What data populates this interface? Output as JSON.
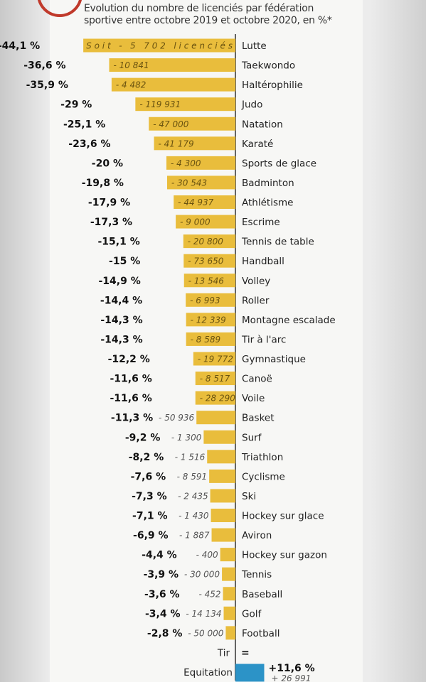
{
  "subtitle": "Evolution du nombre de licenciés par fédération sportive entre octobre 2019 et octobre 2020, en %*",
  "colors": {
    "negative": "#e9bd3c",
    "positive": "#2c93c7",
    "axis": "#333333"
  },
  "chart_data": {
    "type": "bar",
    "orientation": "horizontal",
    "title": "Evolution du nombre de licenciés par fédération sportive entre octobre 2019 et octobre 2020, en %*",
    "xlabel": "",
    "ylabel": "",
    "xlim": [
      -44.1,
      11.6
    ],
    "rows": [
      {
        "category": "Lutte",
        "value": -44.1,
        "pct_label": "-44,1 %",
        "count_label": "Soit - 5 702 licenciés"
      },
      {
        "category": "Taekwondo",
        "value": -36.6,
        "pct_label": "-36,6 %",
        "count_label": "- 10 841"
      },
      {
        "category": "Haltérophilie",
        "value": -35.9,
        "pct_label": "-35,9 %",
        "count_label": "- 4 482"
      },
      {
        "category": "Judo",
        "value": -29,
        "pct_label": "-29 %",
        "count_label": "- 119 931"
      },
      {
        "category": "Natation",
        "value": -25.1,
        "pct_label": "-25,1 %",
        "count_label": "- 47 000"
      },
      {
        "category": "Karaté",
        "value": -23.6,
        "pct_label": "-23,6 %",
        "count_label": "- 41 179"
      },
      {
        "category": "Sports de glace",
        "value": -20,
        "pct_label": "-20 %",
        "count_label": "- 4 300"
      },
      {
        "category": "Badminton",
        "value": -19.8,
        "pct_label": "-19,8 %",
        "count_label": "- 30 543"
      },
      {
        "category": "Athlétisme",
        "value": -17.9,
        "pct_label": "-17,9 %",
        "count_label": "- 44 937"
      },
      {
        "category": "Escrime",
        "value": -17.3,
        "pct_label": "-17,3 %",
        "count_label": "- 9 000"
      },
      {
        "category": "Tennis de table",
        "value": -15.1,
        "pct_label": "-15,1 %",
        "count_label": "- 20 800"
      },
      {
        "category": "Handball",
        "value": -15,
        "pct_label": "-15 %",
        "count_label": "- 73 650"
      },
      {
        "category": "Volley",
        "value": -14.9,
        "pct_label": "-14,9 %",
        "count_label": "- 13 546"
      },
      {
        "category": "Roller",
        "value": -14.4,
        "pct_label": "-14,4 %",
        "count_label": "- 6 993"
      },
      {
        "category": "Montagne escalade",
        "value": -14.3,
        "pct_label": "-14,3 %",
        "count_label": "- 12 339"
      },
      {
        "category": "Tir à l'arc",
        "value": -14.3,
        "pct_label": "-14,3 %",
        "count_label": "- 8 589"
      },
      {
        "category": "Gymnastique",
        "value": -12.2,
        "pct_label": "-12,2 %",
        "count_label": "- 19 772"
      },
      {
        "category": "Canoë",
        "value": -11.6,
        "pct_label": "-11,6 %",
        "count_label": "- 8 517"
      },
      {
        "category": "Voile",
        "value": -11.6,
        "pct_label": "-11,6 %",
        "count_label": "- 28 290"
      },
      {
        "category": "Basket",
        "value": -11.3,
        "pct_label": "-11,3 %",
        "count_label": "- 50 936"
      },
      {
        "category": "Surf",
        "value": -9.2,
        "pct_label": "-9,2 %",
        "count_label": "- 1 300"
      },
      {
        "category": "Triathlon",
        "value": -8.2,
        "pct_label": "-8,2 %",
        "count_label": "- 1 516"
      },
      {
        "category": "Cyclisme",
        "value": -7.6,
        "pct_label": "-7,6 %",
        "count_label": "- 8 591"
      },
      {
        "category": "Ski",
        "value": -7.3,
        "pct_label": "-7,3 %",
        "count_label": "- 2 435"
      },
      {
        "category": "Hockey sur glace",
        "value": -7.1,
        "pct_label": "-7,1 %",
        "count_label": "- 1 430"
      },
      {
        "category": "Aviron",
        "value": -6.9,
        "pct_label": "-6,9 %",
        "count_label": "- 1 887"
      },
      {
        "category": "Hockey sur gazon",
        "value": -4.4,
        "pct_label": "-4,4 %",
        "count_label": "- 400"
      },
      {
        "category": "Tennis",
        "value": -3.9,
        "pct_label": "-3,9 %",
        "count_label": "- 30 000"
      },
      {
        "category": "Baseball",
        "value": -3.6,
        "pct_label": "-3,6 %",
        "count_label": "- 452"
      },
      {
        "category": "Golf",
        "value": -3.4,
        "pct_label": "-3,4 %",
        "count_label": "- 14 134"
      },
      {
        "category": "Football",
        "value": -2.8,
        "pct_label": "-2,8 %",
        "count_label": "- 50 000"
      },
      {
        "category": "Tir",
        "value": 0,
        "pct_label": "=",
        "count_label": ""
      },
      {
        "category": "Equitation",
        "value": 11.6,
        "pct_label": "+11,6 %",
        "count_label": "+ 26 991"
      }
    ]
  }
}
